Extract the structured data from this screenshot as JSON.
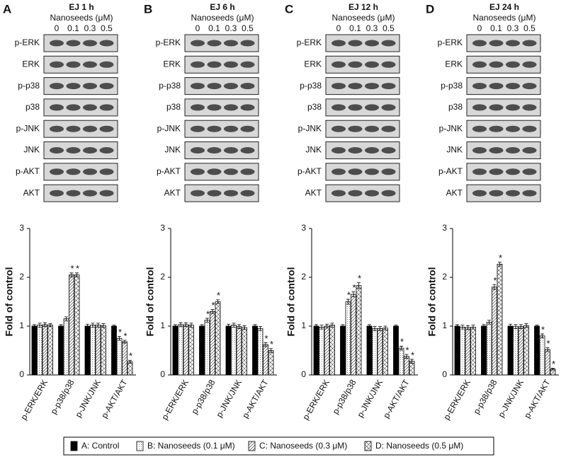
{
  "chart_data": [
    {
      "type": "bar",
      "panel": "A",
      "title": "EJ 1 h",
      "treatment_label": "Nanoseeds (μM)",
      "doses": [
        "0",
        "0.1",
        "0.3",
        "0.5"
      ],
      "blots": [
        "p-ERK",
        "ERK",
        "p-p38",
        "p38",
        "p-JNK",
        "JNK",
        "p-AKT",
        "AKT"
      ],
      "ylabel": "Fold of control",
      "categories": [
        "p-ERK/ERK",
        "p-p38/p38",
        "p-JNK/JNK",
        "p-AKT/AKT"
      ],
      "ylim": [
        0,
        3
      ],
      "yticks": [
        0,
        1,
        2,
        3
      ],
      "series": [
        {
          "values": [
            1,
            1,
            1,
            1
          ],
          "errors": [
            0.03,
            0.03,
            0.04,
            0.02
          ],
          "stars": [
            null,
            null,
            null,
            null
          ]
        },
        {
          "values": [
            1.02,
            1.15,
            1.02,
            0.75
          ],
          "errors": [
            0.04,
            0.04,
            0.04,
            0.04
          ],
          "stars": [
            null,
            null,
            null,
            "*"
          ]
        },
        {
          "values": [
            1.03,
            2.05,
            1.02,
            0.68
          ],
          "errors": [
            0.04,
            0.04,
            0.04,
            0.03
          ],
          "stars": [
            null,
            "*",
            null,
            "*"
          ]
        },
        {
          "values": [
            1.02,
            2.05,
            1.01,
            0.27
          ],
          "errors": [
            0.03,
            0.04,
            0.04,
            0.03
          ],
          "stars": [
            null,
            "*",
            null,
            "*"
          ]
        }
      ]
    },
    {
      "type": "bar",
      "panel": "B",
      "title": "EJ 6 h",
      "treatment_label": "Nanoseeds (μM)",
      "doses": [
        "0",
        "0.1",
        "0.3",
        "0.5"
      ],
      "blots": [
        "p-ERK",
        "ERK",
        "p-p38",
        "p38",
        "p-JNK",
        "JNK",
        "p-AKT",
        "AKT"
      ],
      "ylabel": "Fold of control",
      "categories": [
        "p-ERK/ERK",
        "p-p38/p38",
        "p-JNK/JNK",
        "p-AKT/AKT"
      ],
      "ylim": [
        0,
        3
      ],
      "yticks": [
        0,
        1,
        2,
        3
      ],
      "series": [
        {
          "values": [
            1,
            1,
            1,
            1
          ],
          "errors": [
            0.03,
            0.03,
            0.04,
            0.03
          ],
          "stars": [
            null,
            null,
            null,
            null
          ]
        },
        {
          "values": [
            1.03,
            1.12,
            1.02,
            0.95
          ],
          "errors": [
            0.04,
            0.04,
            0.04,
            0.04
          ],
          "stars": [
            null,
            "*",
            null,
            null
          ]
        },
        {
          "values": [
            1.03,
            1.3,
            0.99,
            0.62
          ],
          "errors": [
            0.04,
            0.04,
            0.04,
            0.04
          ],
          "stars": [
            null,
            "*",
            null,
            "*"
          ]
        },
        {
          "values": [
            1.02,
            1.5,
            0.97,
            0.5
          ],
          "errors": [
            0.04,
            0.04,
            0.04,
            0.04
          ],
          "stars": [
            null,
            "*",
            null,
            "*"
          ]
        }
      ]
    },
    {
      "type": "bar",
      "panel": "C",
      "title": "EJ 12 h",
      "treatment_label": "Nanoseeds (μM)",
      "doses": [
        "0",
        "0.1",
        "0.3",
        "0.5"
      ],
      "blots": [
        "p-ERK",
        "ERK",
        "p-p38",
        "p38",
        "p-JNK",
        "JNK",
        "p-AKT",
        "AKT"
      ],
      "ylabel": "Fold of control",
      "categories": [
        "p-ERK/ERK",
        "p-p38/p38",
        "p-JNK/JNK",
        "p-AKT/AKT"
      ],
      "ylim": [
        0,
        3
      ],
      "yticks": [
        0,
        1,
        2,
        3
      ],
      "series": [
        {
          "values": [
            1,
            1,
            1,
            1
          ],
          "errors": [
            0.03,
            0.03,
            0.03,
            0.02
          ],
          "stars": [
            null,
            null,
            null,
            null
          ]
        },
        {
          "values": [
            0.98,
            1.5,
            0.95,
            0.55
          ],
          "errors": [
            0.04,
            0.05,
            0.04,
            0.04
          ],
          "stars": [
            null,
            "*",
            null,
            "*"
          ]
        },
        {
          "values": [
            1.0,
            1.65,
            0.95,
            0.38
          ],
          "errors": [
            0.04,
            0.05,
            0.04,
            0.04
          ],
          "stars": [
            null,
            "*",
            null,
            "*"
          ]
        },
        {
          "values": [
            1.02,
            1.83,
            0.96,
            0.28
          ],
          "errors": [
            0.04,
            0.06,
            0.04,
            0.04
          ],
          "stars": [
            null,
            "*",
            null,
            "*"
          ]
        }
      ]
    },
    {
      "type": "bar",
      "panel": "D",
      "title": "EJ 24 h",
      "treatment_label": "Nanoseeds (μM)",
      "doses": [
        "0",
        "0.1",
        "0.3",
        "0.5"
      ],
      "blots": [
        "p-ERK",
        "ERK",
        "p-p38",
        "p38",
        "p-JNK",
        "JNK",
        "p-AKT",
        "AKT"
      ],
      "ylabel": "Fold of control",
      "categories": [
        "p-ERK/ERK",
        "p-p38/p38",
        "p-JNK/JNK",
        "p-AKT/AKT"
      ],
      "ylim": [
        0,
        3
      ],
      "yticks": [
        0,
        1,
        2,
        3
      ],
      "series": [
        {
          "values": [
            1,
            1,
            1,
            1
          ],
          "errors": [
            0.03,
            0.03,
            0.04,
            0.02
          ],
          "stars": [
            null,
            null,
            null,
            null
          ]
        },
        {
          "values": [
            0.98,
            1.08,
            0.99,
            0.8
          ],
          "errors": [
            0.04,
            0.04,
            0.04,
            0.04
          ],
          "stars": [
            null,
            null,
            null,
            "*"
          ]
        },
        {
          "values": [
            0.97,
            1.8,
            0.99,
            0.52
          ],
          "errors": [
            0.04,
            0.05,
            0.04,
            0.04
          ],
          "stars": [
            null,
            "*",
            null,
            "*"
          ]
        },
        {
          "values": [
            0.98,
            2.27,
            1.01,
            0.12
          ],
          "errors": [
            0.04,
            0.04,
            0.04,
            0.02
          ],
          "stars": [
            null,
            "*",
            null,
            "*"
          ]
        }
      ]
    }
  ],
  "legend": [
    {
      "name": "A: Control",
      "pattern": "solid"
    },
    {
      "name": "B: Nanoseeds (0.1 μM)",
      "pattern": "dots"
    },
    {
      "name": "C: Nanoseeds (0.3 μM)",
      "pattern": "hatch"
    },
    {
      "name": "D: Nanoseeds (0.5 μM)",
      "pattern": "cross"
    }
  ]
}
